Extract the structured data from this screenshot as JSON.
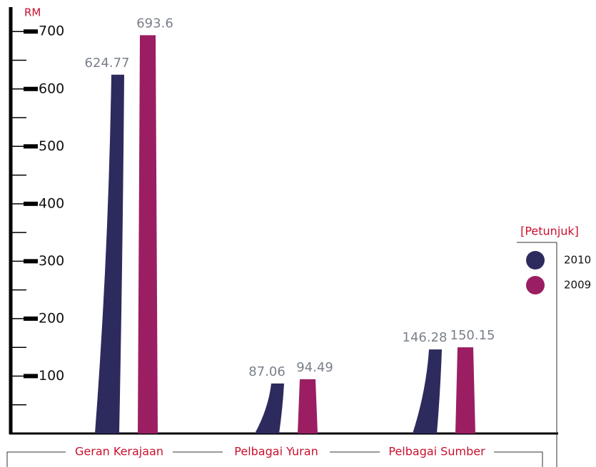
{
  "chart_data": {
    "type": "bar",
    "y_label": "RM",
    "legend_title": "[Petunjuk]",
    "legend_position": "right",
    "categories": [
      "Geran Kerajaan",
      "Pelbagai Yuran",
      "Pelbagai Sumber"
    ],
    "series": [
      {
        "name": "2010",
        "color": "#2d2a5e",
        "values": [
          624.77,
          87.06,
          146.28
        ]
      },
      {
        "name": "2009",
        "color": "#9b1e63",
        "values": [
          693.6,
          94.49,
          150.15
        ]
      }
    ],
    "ylim": [
      0,
      740
    ],
    "yticks": [
      100,
      200,
      300,
      400,
      500,
      600,
      700
    ],
    "minor_yticks": [
      50,
      150,
      250,
      350,
      450,
      550,
      650
    ]
  }
}
